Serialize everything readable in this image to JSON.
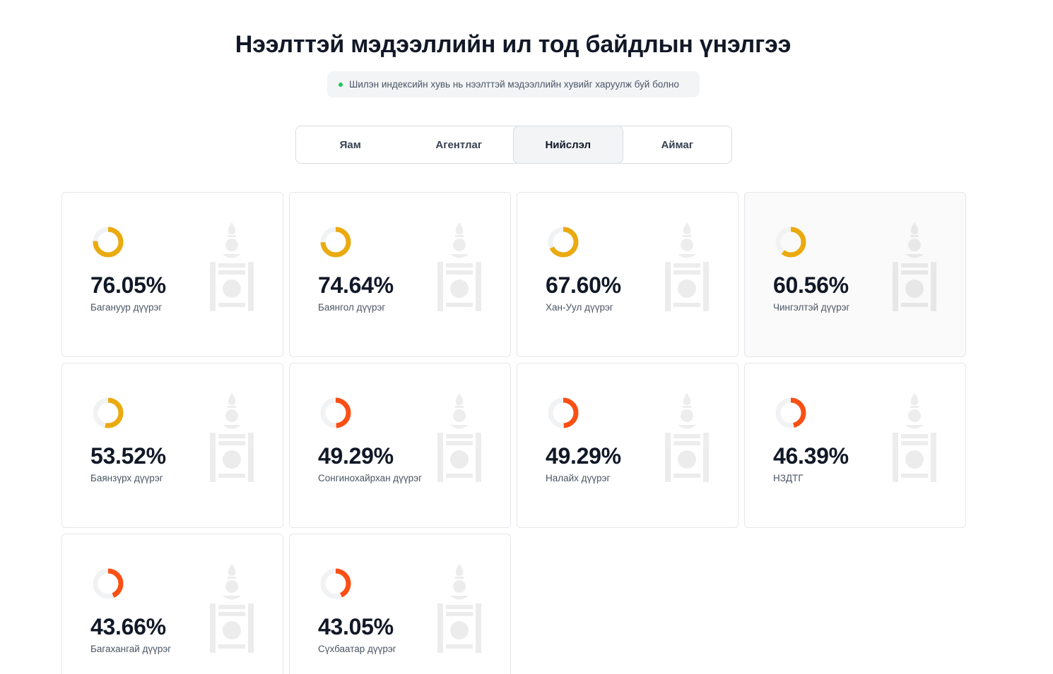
{
  "header": {
    "title": "Нээлттэй мэдээллийн ил тод байдлын үнэлгээ",
    "note": "Шилэн индексийн хувь нь нээлттэй мэдээллийн хувийг харуулж буй болно"
  },
  "tabs": [
    {
      "label": "Яам",
      "active": false
    },
    {
      "label": "Агентлаг",
      "active": false
    },
    {
      "label": "Нийслэл",
      "active": true
    },
    {
      "label": "Аймаг",
      "active": false
    }
  ],
  "colors": {
    "high": "#eaaa10",
    "low": "#fb4f14",
    "track": "#f1f2f4",
    "status_dot": "#22c55e"
  },
  "icons": {
    "card_watermark": "soyombo-emblem-icon"
  },
  "cards": [
    {
      "percent_label": "76.05%",
      "value": 76.05,
      "name": "Багануур дүүрэг"
    },
    {
      "percent_label": "74.64%",
      "value": 74.64,
      "name": "Баянгол дүүрэг"
    },
    {
      "percent_label": "67.60%",
      "value": 67.6,
      "name": "Хан-Уул дүүрэг"
    },
    {
      "percent_label": "60.56%",
      "value": 60.56,
      "name": "Чингэлтэй дүүрэг"
    },
    {
      "percent_label": "53.52%",
      "value": 53.52,
      "name": "Баянзүрх дүүрэг"
    },
    {
      "percent_label": "49.29%",
      "value": 49.29,
      "name": "Сонгинохайрхан дүүрэг"
    },
    {
      "percent_label": "49.29%",
      "value": 49.29,
      "name": "Налайх дүүрэг"
    },
    {
      "percent_label": "46.39%",
      "value": 46.39,
      "name": "НЗДТГ"
    },
    {
      "percent_label": "43.66%",
      "value": 43.66,
      "name": "Багахангай дүүрэг"
    },
    {
      "percent_label": "43.05%",
      "value": 43.05,
      "name": "Сүхбаатар дүүрэг"
    }
  ]
}
